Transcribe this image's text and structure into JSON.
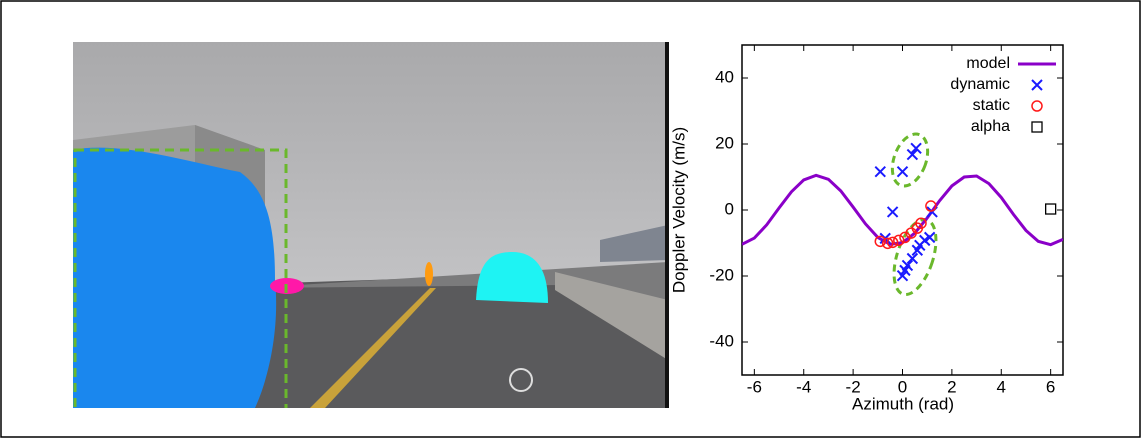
{
  "chart_data": {
    "type": "scatter",
    "xlabel": "Azimuth (rad)",
    "ylabel": "Doppler Velocity (m/s)",
    "xlim": [
      -6.5,
      6.5
    ],
    "xticks": [
      -6,
      -4,
      -2,
      0,
      2,
      4,
      6
    ],
    "ylim": [
      -50,
      50
    ],
    "yticks": [
      -40,
      -20,
      0,
      20,
      40
    ],
    "grid": false,
    "legend": "upper right",
    "series": [
      {
        "name": "model",
        "style": "line",
        "color": "#8a00c8",
        "x": [
          -6.5,
          -6,
          -5.5,
          -5,
          -4.5,
          -4,
          -3.5,
          -3,
          -2.5,
          -2,
          -1.5,
          -1,
          -0.5,
          0,
          0.5,
          1,
          1.5,
          2,
          2.5,
          3,
          3.5,
          4,
          4.5,
          5,
          5.5,
          6,
          6.5
        ],
        "values": [
          -10.4,
          -8.5,
          -4.5,
          0.6,
          5.5,
          9.1,
          10.5,
          9.3,
          5.8,
          0.9,
          -4.2,
          -8.3,
          -10.4,
          -9.9,
          -7.0,
          -2.4,
          2.8,
          7.3,
          10.0,
          10.3,
          8.0,
          3.8,
          -1.4,
          -6.2,
          -9.5,
          -10.5,
          -8.9
        ]
      },
      {
        "name": "dynamic",
        "style": "cross",
        "color": "#1a1aff",
        "x": [
          -0.9,
          0,
          0.4,
          0.55,
          -0.4,
          1.2,
          -0.7,
          1.1,
          0.9,
          0.7,
          0.6,
          0.4,
          0.2,
          0.1,
          0
        ],
        "values": [
          11.6,
          11.6,
          16.8,
          18.7,
          -0.6,
          -0.6,
          -8.6,
          -8.3,
          -9.2,
          -10.7,
          -12.2,
          -14.7,
          -16.8,
          -18.3,
          -19.9
        ]
      },
      {
        "name": "static",
        "style": "circle",
        "color": "#ff1a1a",
        "x": [
          -0.9,
          -0.6,
          -0.4,
          -0.15,
          0.1,
          0.35,
          0.6,
          0.75,
          1.15
        ],
        "values": [
          -9.5,
          -10.1,
          -9.8,
          -9.2,
          -8.3,
          -7.0,
          -5.5,
          -4.0,
          1.2
        ]
      },
      {
        "name": "alpha",
        "style": "square",
        "color": "#000000",
        "x": [
          6.0
        ],
        "values": [
          0.3
        ]
      }
    ]
  }
}
